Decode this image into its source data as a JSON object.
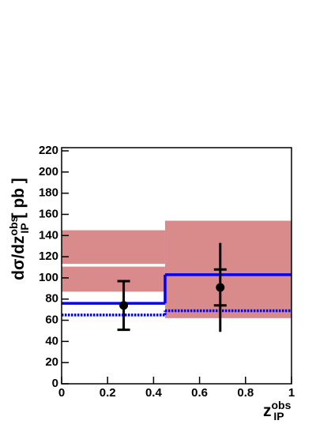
{
  "chart_data": {
    "type": "histogram",
    "x_label": {
      "main": "z",
      "sup": "obs",
      "sub": "IP"
    },
    "y_label": {
      "main": "dσ/dz",
      "sup": "obs",
      "sub": "IP",
      "unit": " [ pb ]"
    },
    "bins": [
      0,
      0.45,
      1
    ],
    "xlim": [
      0,
      1
    ],
    "xticks": [
      0,
      0.2,
      0.4,
      0.6,
      0.8,
      1
    ],
    "ylim": [
      0,
      223
    ],
    "yticks": [
      0,
      20,
      40,
      60,
      80,
      100,
      120,
      140,
      160,
      180,
      200,
      220
    ],
    "band": {
      "color": "#d98b8b",
      "low": [
        87,
        62
      ],
      "high": [
        145,
        154
      ]
    },
    "lines": [
      {
        "color": "#ffffff",
        "dashed": false,
        "values": [
          112,
          null
        ]
      },
      {
        "color": "#0000ff",
        "dashed": false,
        "values": [
          76,
          103
        ]
      },
      {
        "color": "#0000ff",
        "dashed": true,
        "values": [
          65,
          69
        ]
      }
    ],
    "points": {
      "color": "#000000",
      "x": [
        0.27,
        0.69
      ],
      "values": [
        74,
        91
      ],
      "stat_err": [
        23,
        17
      ],
      "total_err": [
        24,
        42
      ]
    }
  }
}
